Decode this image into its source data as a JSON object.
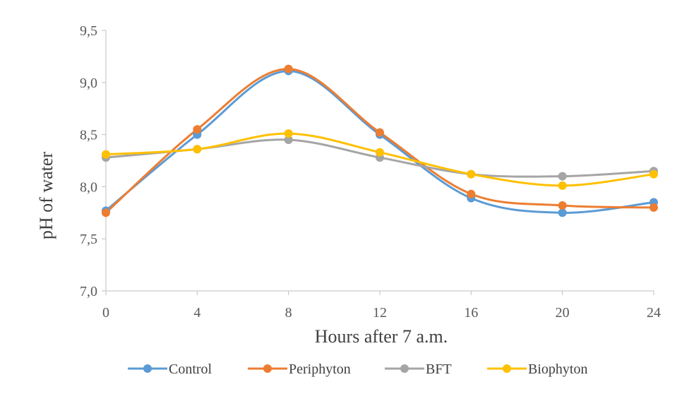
{
  "chart_data": {
    "type": "line",
    "xlabel": "Hours after 7 a.m.",
    "ylabel": "pH of water",
    "x": [
      0,
      4,
      8,
      12,
      16,
      20,
      24
    ],
    "x_tick_labels": [
      "0",
      "4",
      "8",
      "12",
      "16",
      "20",
      "24"
    ],
    "y_tick_labels": [
      "7,0",
      "7,5",
      "8,0",
      "8,5",
      "9,0",
      "9,5"
    ],
    "y_ticks": [
      7.0,
      7.5,
      8.0,
      8.5,
      9.0,
      9.5
    ],
    "xlim": [
      0,
      24
    ],
    "ylim": [
      7.0,
      9.5
    ],
    "grid": false,
    "smooth": true,
    "legend_position": "bottom",
    "series": [
      {
        "name": "Control",
        "color": "#5B9BD5",
        "values": [
          7.77,
          8.5,
          9.11,
          8.5,
          7.89,
          7.75,
          7.85
        ]
      },
      {
        "name": "Periphyton",
        "color": "#ED7D31",
        "values": [
          7.75,
          8.55,
          9.13,
          8.52,
          7.93,
          7.82,
          7.8
        ]
      },
      {
        "name": "BFT",
        "color": "#A5A5A5",
        "values": [
          8.28,
          8.36,
          8.45,
          8.28,
          8.12,
          8.1,
          8.15
        ]
      },
      {
        "name": "Biophyton",
        "color": "#FFC000",
        "values": [
          8.31,
          8.36,
          8.51,
          8.33,
          8.12,
          8.01,
          8.12
        ]
      }
    ]
  }
}
